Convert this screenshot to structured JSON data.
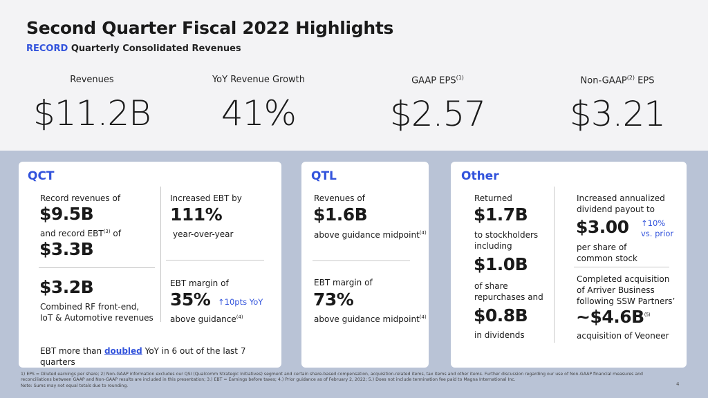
{
  "header": {
    "title": "Second Quarter Fiscal 2022 Highlights",
    "subtitle_accent": "RECORD",
    "subtitle_rest": " Quarterly Consolidated Revenues"
  },
  "kpis": [
    {
      "label": "Revenues",
      "sup": "",
      "label_after": "",
      "value": "$11.2B"
    },
    {
      "label": "YoY Revenue Growth",
      "sup": "",
      "label_after": "",
      "value": "41%"
    },
    {
      "label": "GAAP EPS",
      "sup": "(1)",
      "label_after": "",
      "value": "$2.57"
    },
    {
      "label": "Non-GAAP",
      "sup": "(2)",
      "label_after": " EPS",
      "value": "$3.21"
    }
  ],
  "qct": {
    "heading": "QCT",
    "record_rev_label": "Record revenues of",
    "record_rev_value": "$9.5B",
    "record_ebt_pre": "and record EBT",
    "record_ebt_sup": "(3)",
    "record_ebt_post": " of",
    "record_ebt_value": "$3.3B",
    "ebt_inc_label": "Increased EBT by",
    "ebt_inc_value": "111%",
    "ebt_inc_sub": "year-over-year",
    "rf_value": "$3.2B",
    "rf_line1": "Combined RF front-end,",
    "rf_line2": "IoT & Automotive revenues",
    "margin_label": "EBT margin of",
    "margin_value": "35%",
    "margin_up": "↑10pts YoY",
    "margin_sub": "above guidance",
    "margin_sup": "(4)",
    "foot_pre": "EBT more than ",
    "foot_link": "doubled",
    "foot_post": " YoY in 6 out of the last 7 quarters"
  },
  "qtl": {
    "heading": "QTL",
    "rev_label": "Revenues of",
    "rev_value": "$1.6B",
    "rev_sub": "above guidance midpoint",
    "rev_sup": "(4)",
    "margin_label": "EBT margin of",
    "margin_value": "73%",
    "margin_sub": "above guidance midpoint",
    "margin_sup": "(4)"
  },
  "other": {
    "heading": "Other",
    "returned_label": "Returned",
    "returned_value": "$1.7B",
    "returned_sub1": "to stockholders",
    "returned_sub2": "including",
    "repurchase_value": "$1.0B",
    "repurchase_sub1": "of share",
    "repurchase_sub2": "repurchases and",
    "dividends_value": "$0.8B",
    "dividends_sub": "in dividends",
    "div_label1": "Increased annualized",
    "div_label2": "dividend payout to",
    "div_value": "$3.00",
    "div_up1": "↑10%",
    "div_up2": "vs. prior",
    "div_sub1": "per share of",
    "div_sub2": "common stock",
    "acq_line1": "Completed acquisition",
    "acq_line2": "of Arriver Business",
    "acq_line3": "following SSW Partners’",
    "acq_value": "~$4.6B",
    "acq_sup": "(5)",
    "acq_sub": "acquisition of Veoneer"
  },
  "footnotes": {
    "line1": "1) EPS = Diluted earnings per share; 2) Non-GAAP information excludes our QSI (Qualcomm Strategic Initiatives) segment and certain share-based compensation, acquisition-related items, tax items and other items. Further discussion regarding our use of Non-GAAP financial measures and",
    "line2": "reconciliations between GAAP and Non-GAAP results are included in this presentation; 3.) EBT = Earnings before taxes; 4.) Prior guidance as of February 2, 2022; 5.) Does not include termination fee paid to Magna International Inc.",
    "line3": "Note: Sums may not equal totals due to rounding.",
    "page_number": "4"
  }
}
